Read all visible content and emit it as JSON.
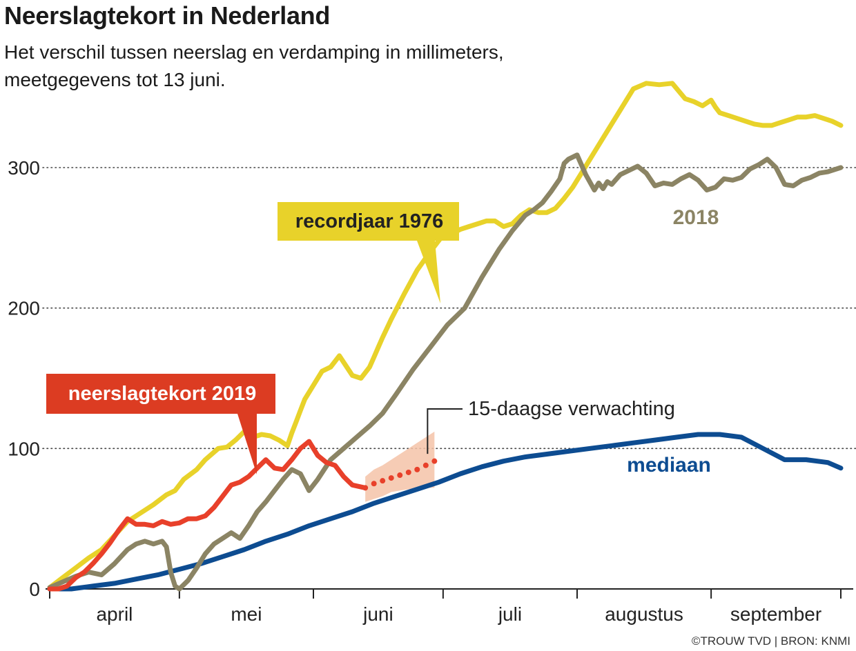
{
  "title": "Neerslagtekort in Nederland",
  "subtitle": "Het verschil tussen neerslag en verdamping in millimeters, meetgegevens tot 13 juni.",
  "credit": "©TROUW TVD | BRON: KNMI",
  "colors": {
    "record1976": "#e8d22a",
    "y2018": "#8b8464",
    "y2019": "#e8402a",
    "mediaan": "#0d4c91",
    "forecast_band": "#f5c3a8",
    "label2019_bg": "#dc3c22",
    "label1976_bg": "#e8d22a",
    "grid": "#444444"
  },
  "chart_data": {
    "type": "line",
    "title": "Neerslagtekort in Nederland",
    "ylabel": "millimeters",
    "ylim": [
      0,
      330
    ],
    "yticks": [
      0,
      100,
      200,
      300
    ],
    "xlim": [
      0,
      183
    ],
    "x_unit": "dagen sinds 1 april",
    "months": [
      {
        "label": "april",
        "start": 0,
        "end": 30
      },
      {
        "label": "mei",
        "start": 30,
        "end": 61
      },
      {
        "label": "juni",
        "start": 61,
        "end": 91
      },
      {
        "label": "juli",
        "start": 91,
        "end": 122
      },
      {
        "label": "augustus",
        "start": 122,
        "end": 153
      },
      {
        "label": "september",
        "start": 153,
        "end": 183
      }
    ],
    "labels": {
      "record1976": "recordjaar 1976",
      "y2018": "2018",
      "y2019": "neerslagtekort 2019",
      "mediaan": "mediaan",
      "forecast": "15-daagse verwachting"
    },
    "series": [
      {
        "name": "recordjaar 1976",
        "key": "record1976",
        "x": [
          0,
          3,
          6,
          9,
          12,
          15,
          18,
          21,
          24,
          27,
          29,
          31,
          34,
          36,
          39,
          41,
          43,
          45,
          47,
          49,
          51,
          53,
          55,
          56,
          57,
          58,
          59,
          61,
          63,
          65,
          67,
          70,
          72,
          74,
          75,
          76,
          77,
          79,
          82,
          85,
          88,
          91,
          93,
          95,
          97,
          99,
          101,
          103,
          105,
          107,
          109,
          111,
          113,
          115,
          117,
          119,
          121,
          123,
          126,
          129,
          132,
          135,
          138,
          141,
          144,
          147,
          149,
          151,
          153,
          154,
          155,
          157,
          159,
          161,
          163,
          165,
          167,
          169,
          171,
          173,
          175,
          177,
          179,
          181,
          183
        ],
        "y": [
          1,
          8,
          15,
          22,
          28,
          38,
          48,
          54,
          60,
          67,
          70,
          78,
          85,
          92,
          100,
          101,
          106,
          112,
          108,
          110,
          109,
          106,
          102,
          111,
          119,
          127,
          135,
          145,
          155,
          158,
          166,
          152,
          150,
          158,
          165,
          172,
          179,
          192,
          210,
          227,
          240,
          252,
          253,
          256,
          258,
          260,
          262,
          262,
          258,
          260,
          266,
          270,
          268,
          268,
          271,
          278,
          286,
          296,
          311,
          326,
          341,
          356,
          360,
          359,
          360,
          349,
          347,
          344,
          348,
          343,
          339,
          337,
          335,
          333,
          331,
          330,
          330,
          332,
          334,
          336,
          336,
          337,
          335,
          333,
          330
        ]
      },
      {
        "name": "2018",
        "key": "y2018",
        "x": [
          0,
          3,
          6,
          9,
          12,
          15,
          18,
          20,
          22,
          24,
          26,
          27,
          28,
          29,
          30,
          32,
          34,
          36,
          38,
          40,
          42,
          44,
          46,
          48,
          50,
          52,
          54,
          56,
          58,
          60,
          62,
          65,
          68,
          71,
          74,
          77,
          80,
          84,
          88,
          92,
          96,
          100,
          104,
          107,
          110,
          112,
          114,
          116,
          118,
          119,
          120,
          122,
          124,
          126,
          127,
          128,
          129,
          130,
          132,
          134,
          136,
          138,
          140,
          142,
          144,
          146,
          148,
          150,
          152,
          154,
          156,
          158,
          160,
          162,
          164,
          166,
          168,
          170,
          172,
          174,
          176,
          178,
          180,
          183
        ],
        "y": [
          1,
          5,
          9,
          12,
          10,
          18,
          28,
          32,
          34,
          32,
          34,
          30,
          12,
          2,
          0,
          6,
          15,
          25,
          32,
          36,
          40,
          36,
          45,
          55,
          62,
          70,
          78,
          85,
          82,
          70,
          78,
          92,
          100,
          108,
          116,
          125,
          138,
          156,
          172,
          188,
          200,
          222,
          242,
          255,
          266,
          270,
          275,
          283,
          292,
          303,
          306,
          309,
          295,
          284,
          289,
          285,
          290,
          288,
          295,
          298,
          301,
          296,
          287,
          289,
          288,
          292,
          295,
          291,
          284,
          286,
          292,
          291,
          293,
          299,
          302,
          306,
          300,
          288,
          287,
          291,
          293,
          296,
          297,
          300
        ]
      },
      {
        "name": "neerslagtekort 2019",
        "key": "y2019",
        "x": [
          0,
          2,
          4,
          6,
          8,
          10,
          12,
          14,
          16,
          18,
          20,
          22,
          24,
          26,
          28,
          30,
          32,
          34,
          36,
          38,
          40,
          42,
          44,
          46,
          48,
          50,
          52,
          54,
          56,
          58,
          60,
          62,
          64,
          66,
          68,
          70,
          73
        ],
        "y": [
          0,
          0,
          2,
          8,
          12,
          18,
          25,
          33,
          42,
          50,
          46,
          46,
          45,
          48,
          46,
          47,
          50,
          50,
          52,
          58,
          66,
          74,
          76,
          80,
          86,
          92,
          86,
          85,
          92,
          100,
          105,
          95,
          90,
          88,
          80,
          74,
          72
        ]
      },
      {
        "name": "mediaan",
        "key": "mediaan",
        "x": [
          0,
          5,
          10,
          15,
          20,
          25,
          30,
          35,
          40,
          45,
          50,
          55,
          60,
          65,
          70,
          75,
          80,
          85,
          90,
          95,
          100,
          105,
          110,
          115,
          120,
          125,
          130,
          135,
          140,
          145,
          150,
          155,
          160,
          165,
          170,
          175,
          180,
          183
        ],
        "y": [
          0,
          0,
          2,
          4,
          7,
          10,
          14,
          18,
          23,
          28,
          34,
          39,
          45,
          50,
          55,
          61,
          66,
          71,
          76,
          82,
          87,
          91,
          94,
          96,
          98,
          100,
          102,
          104,
          106,
          108,
          110,
          110,
          108,
          100,
          92,
          92,
          90,
          86
        ]
      }
    ],
    "forecast": {
      "x": [
        73,
        75,
        77,
        79,
        81,
        83,
        85,
        87,
        89
      ],
      "y": [
        72,
        75,
        77,
        79,
        81,
        83,
        85,
        88,
        91
      ],
      "band_x": [
        73,
        75,
        77,
        79,
        81,
        83,
        85,
        87,
        89
      ],
      "band_low": [
        62,
        64,
        66,
        69,
        70,
        71,
        71,
        72,
        72
      ],
      "band_high": [
        80,
        85,
        88,
        92,
        96,
        100,
        104,
        108,
        112
      ]
    }
  }
}
